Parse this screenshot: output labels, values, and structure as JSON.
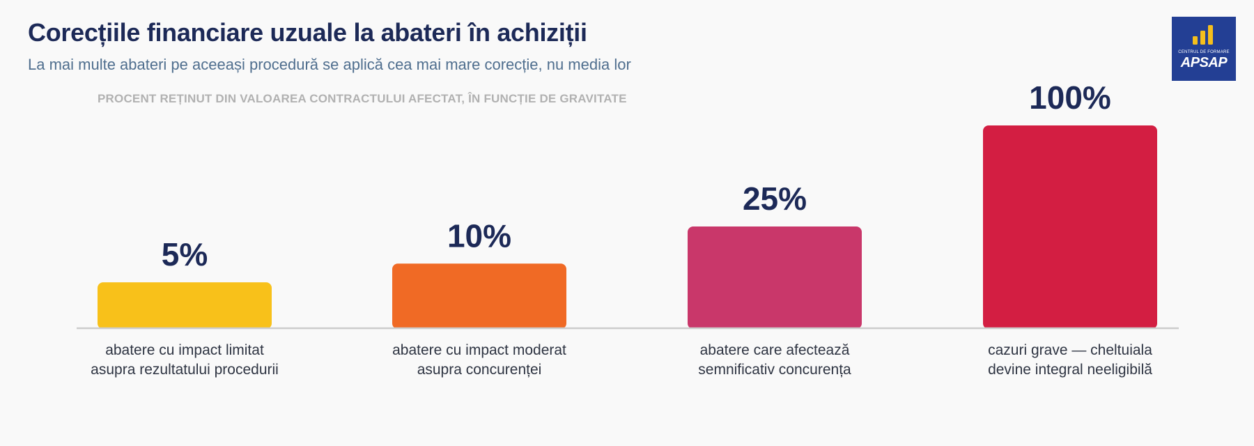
{
  "header": {
    "title": "Corecțiile financiare uzuale la abateri în achiziții",
    "subtitle": "La mai multe abateri pe aceeași procedură se aplică cea mai mare corecție, nu media lor"
  },
  "logo": {
    "small_text": "CENTRUL DE FORMARE",
    "name": "APSAP",
    "icon": "bar-chart-icon",
    "background": "#233f94",
    "accent": "#f5bf1c"
  },
  "chart_data": {
    "type": "bar",
    "title": "Corecțiile financiare uzuale la abateri în achiziții",
    "subtitle": "PROCENT REȚINUT DIN VALOAREA CONTRACTULUI AFECTAT, ÎN FUNCȚIE DE GRAVITATE",
    "categories": [
      [
        "abatere cu impact limitat",
        "asupra rezultatului procedurii"
      ],
      [
        "abatere cu impact moderat",
        "asupra concurenței"
      ],
      [
        "abatere care afectează",
        "semnificativ concurența"
      ],
      [
        "cazuri grave — cheltuiala",
        "devine integral neeligibilă"
      ]
    ],
    "values": [
      5,
      10,
      25,
      100
    ],
    "value_labels": [
      "5%",
      "10%",
      "25%",
      "100%"
    ],
    "colors": [
      "#f8c11a",
      "#f06a25",
      "#c9376a",
      "#d31e42"
    ],
    "value_scale": "sqrt",
    "ylim": [
      0,
      100
    ],
    "grid": false,
    "legend": "none"
  }
}
